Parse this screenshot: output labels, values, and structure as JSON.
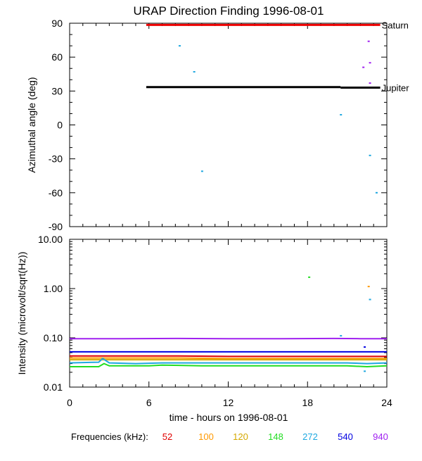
{
  "title": "URAP Direction Finding  1996-08-01",
  "x_axis": {
    "label": "time - hours on 1996-08-01",
    "ticks": [
      0,
      6,
      12,
      18,
      24
    ],
    "range": [
      0,
      24
    ]
  },
  "frequencies": {
    "label": "Frequencies (kHz):",
    "items": [
      {
        "value": "52",
        "color": "#e00000"
      },
      {
        "value": "100",
        "color": "#ff9900"
      },
      {
        "value": "120",
        "color": "#d4a800"
      },
      {
        "value": "148",
        "color": "#22dd22"
      },
      {
        "value": "272",
        "color": "#1fa8e0"
      },
      {
        "value": "540",
        "color": "#0000e0"
      },
      {
        "value": "940",
        "color": "#a020f0"
      }
    ]
  },
  "chart_data": [
    {
      "type": "scatter",
      "ylabel": "Azimuthal angle (deg)",
      "xlim": [
        0,
        24
      ],
      "ylim": [
        -90,
        90
      ],
      "yticks": [
        90,
        60,
        30,
        0,
        -30,
        -60,
        -90
      ],
      "reference_lines": [
        {
          "name": "Saturn",
          "color": "#ee0000",
          "segments": [
            {
              "x": [
                5.8,
                23.5
              ],
              "y": 88.5
            }
          ]
        },
        {
          "name": "Jupiter",
          "color": "#000000",
          "segments": [
            {
              "x": [
                5.8,
                20.5
              ],
              "y": 33.5
            },
            {
              "x": [
                20.5,
                23.5
              ],
              "y": 33.0
            }
          ]
        }
      ],
      "points": [
        {
          "x": 8.3,
          "y": 70,
          "color": "#1fa8e0"
        },
        {
          "x": 9.4,
          "y": 47,
          "color": "#1fa8e0"
        },
        {
          "x": 10.0,
          "y": -41,
          "color": "#1fa8e0"
        },
        {
          "x": 20.5,
          "y": 9,
          "color": "#1fa8e0"
        },
        {
          "x": 22.7,
          "y": -27,
          "color": "#1fa8e0"
        },
        {
          "x": 23.2,
          "y": -60,
          "color": "#1fa8e0"
        },
        {
          "x": 22.6,
          "y": 74,
          "color": "#a020f0"
        },
        {
          "x": 22.7,
          "y": 55,
          "color": "#a020f0"
        },
        {
          "x": 22.2,
          "y": 51,
          "color": "#a020f0"
        },
        {
          "x": 22.7,
          "y": 37,
          "color": "#a020f0"
        }
      ]
    },
    {
      "type": "line",
      "ylabel": "Intensity (microvolt/sqrt(Hz))",
      "xlim": [
        0,
        24
      ],
      "ylim": [
        0.01,
        10
      ],
      "yscale": "log",
      "ytick_labels": [
        "10.00",
        "1.00",
        "0.10",
        "0.01"
      ],
      "yticks": [
        10,
        1,
        0.1,
        0.01
      ],
      "series": [
        {
          "freq": "940",
          "color": "#a020f0",
          "x": [
            0,
            4,
            8,
            12,
            16,
            20,
            22,
            24
          ],
          "y": [
            0.096,
            0.096,
            0.097,
            0.096,
            0.096,
            0.097,
            0.096,
            0.096
          ]
        },
        {
          "freq": "540",
          "color": "#0000e0",
          "x": [
            0,
            4,
            8,
            12,
            16,
            20,
            22,
            24
          ],
          "y": [
            0.052,
            0.052,
            0.052,
            0.052,
            0.052,
            0.052,
            0.052,
            0.052
          ]
        },
        {
          "freq": "52",
          "color": "#e00000",
          "x": [
            0,
            4,
            8,
            12,
            16,
            20,
            22,
            24
          ],
          "y": [
            0.043,
            0.043,
            0.043,
            0.042,
            0.042,
            0.042,
            0.042,
            0.042
          ]
        },
        {
          "freq": "100",
          "color": "#ff9900",
          "x": [
            0,
            4,
            8,
            12,
            16,
            20,
            22,
            24
          ],
          "y": [
            0.039,
            0.039,
            0.039,
            0.038,
            0.038,
            0.038,
            0.038,
            0.038
          ]
        },
        {
          "freq": "120",
          "color": "#d4a800",
          "x": [
            0,
            4,
            8,
            12,
            16,
            20,
            22,
            24
          ],
          "y": [
            0.036,
            0.036,
            0.036,
            0.036,
            0.036,
            0.036,
            0.036,
            0.036
          ]
        },
        {
          "freq": "272",
          "color": "#1fa8e0",
          "x": [
            0,
            2.2,
            2.5,
            3.0,
            5,
            7,
            10,
            14,
            18,
            21,
            22.5,
            24
          ],
          "y": [
            0.031,
            0.032,
            0.038,
            0.031,
            0.03,
            0.031,
            0.031,
            0.031,
            0.031,
            0.031,
            0.03,
            0.031
          ]
        },
        {
          "freq": "148",
          "color": "#22dd22",
          "x": [
            0,
            2.2,
            2.6,
            3.0,
            6,
            7,
            10,
            14,
            18,
            21,
            22.5,
            24
          ],
          "y": [
            0.026,
            0.026,
            0.03,
            0.027,
            0.027,
            0.028,
            0.027,
            0.027,
            0.027,
            0.027,
            0.026,
            0.027
          ]
        }
      ],
      "points": [
        {
          "x": 18.1,
          "y": 1.7,
          "color": "#22dd22"
        },
        {
          "x": 22.6,
          "y": 1.1,
          "color": "#ff9900"
        },
        {
          "x": 22.7,
          "y": 0.6,
          "color": "#1fa8e0"
        },
        {
          "x": 20.5,
          "y": 0.11,
          "color": "#1fa8e0"
        },
        {
          "x": 22.3,
          "y": 0.065,
          "color": "#0000e0"
        },
        {
          "x": 22.3,
          "y": 0.021,
          "color": "#1fa8e0"
        }
      ]
    }
  ]
}
